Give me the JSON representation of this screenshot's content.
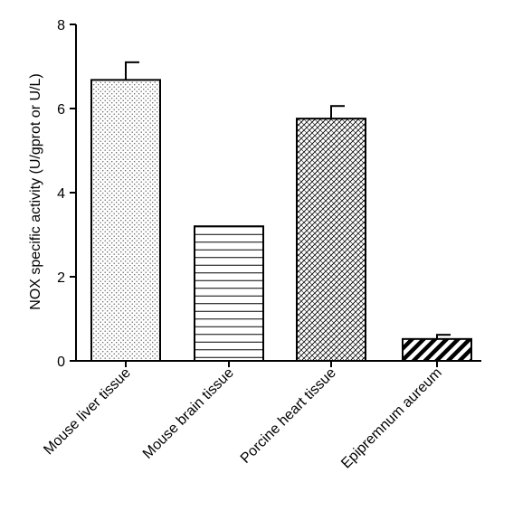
{
  "chart_data": {
    "type": "bar",
    "title": "",
    "xlabel": "",
    "ylabel": "NOX specific activity (U/gprot or U/L)",
    "ylim": [
      0,
      8
    ],
    "yticks": [
      0,
      2,
      4,
      6,
      8
    ],
    "grid": false,
    "categories": [
      "Mouse liver tissue",
      "Mouse brain tissue",
      "Porcine heart tissue",
      "Epipremnum aureum"
    ],
    "values": [
      6.68,
      3.2,
      5.76,
      0.52
    ],
    "errors": [
      0.42,
      0.0,
      0.3,
      0.1
    ],
    "patterns": [
      "dots",
      "horizontal-lines",
      "crosshatch",
      "diagonal-stripes"
    ]
  }
}
